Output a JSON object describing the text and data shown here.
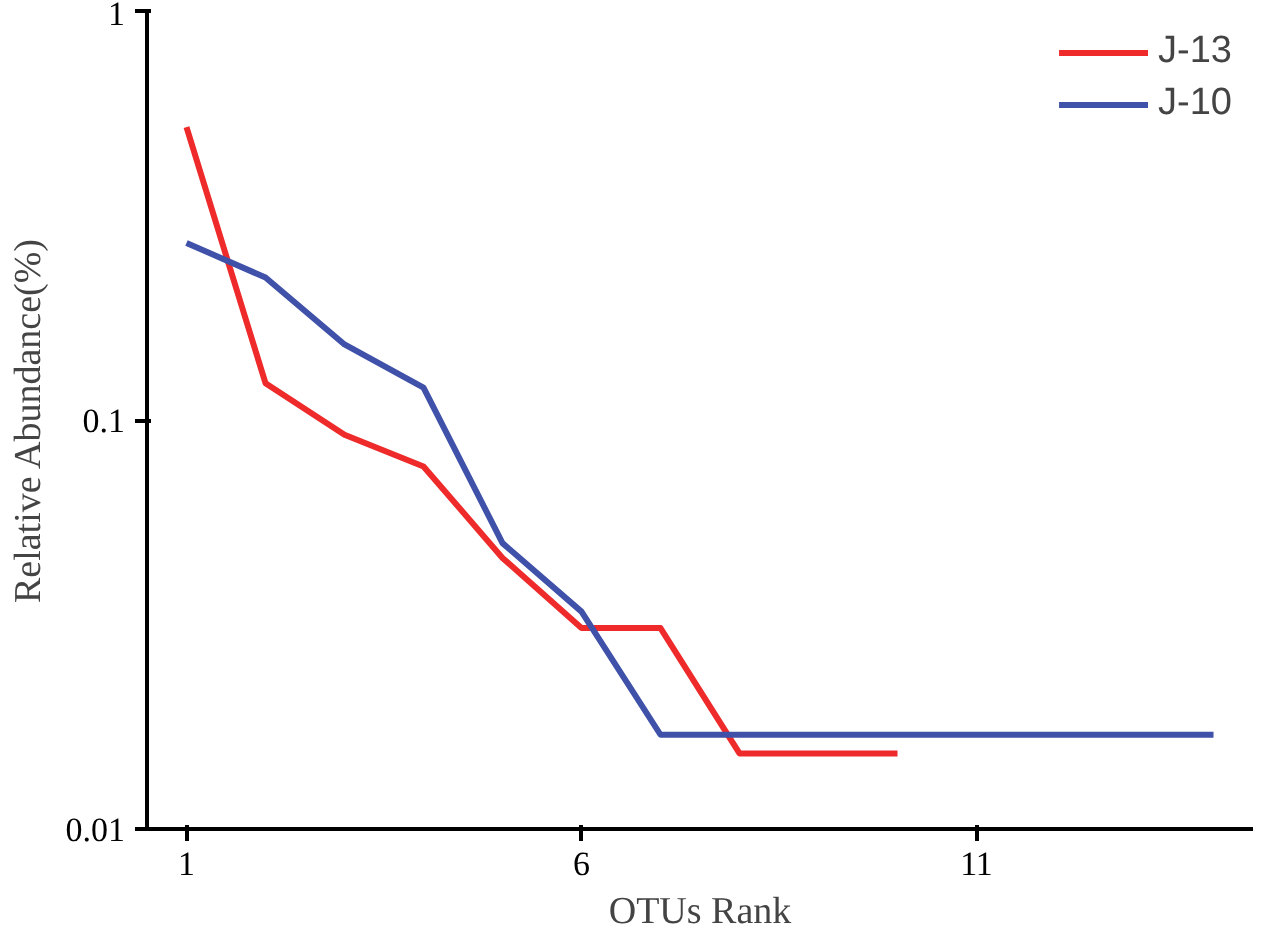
{
  "chart_data": {
    "type": "line",
    "xlabel": "OTUs Rank",
    "ylabel": "Relative Abundance(%)",
    "x": [
      1,
      2,
      3,
      4,
      5,
      6,
      7,
      8,
      9,
      10,
      11,
      12,
      13,
      14
    ],
    "series": [
      {
        "name": "J-13",
        "color": "#ee2a2a",
        "values": [
          0.52,
          0.123,
          0.092,
          0.077,
          0.046,
          0.031,
          0.031,
          0.0153,
          0.0153,
          0.0153,
          null,
          null,
          null,
          null
        ]
      },
      {
        "name": "J-10",
        "color": "#3f51a8",
        "values": [
          0.271,
          0.223,
          0.153,
          0.12,
          0.05,
          0.034,
          0.017,
          0.017,
          0.017,
          0.017,
          0.017,
          0.017,
          0.017,
          0.017
        ]
      }
    ],
    "log": "y",
    "xlim": [
      0.5,
      14.5
    ],
    "ylim": [
      0.01,
      1
    ],
    "xticks": [
      1,
      6,
      11
    ],
    "yticks": [
      0.01,
      0.1,
      1
    ],
    "grid": false,
    "legend": "top right",
    "marker": "none",
    "line_style": "solid"
  }
}
